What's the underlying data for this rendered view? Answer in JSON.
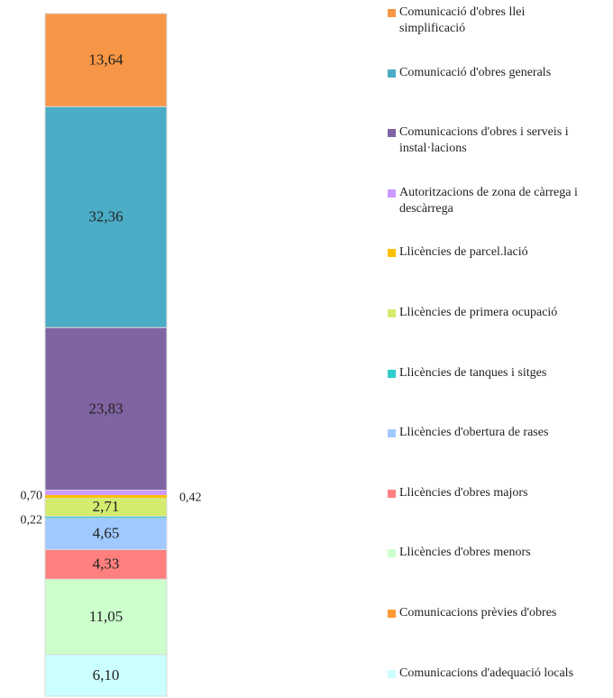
{
  "chart_data": {
    "type": "stacked-bar",
    "series": [
      {
        "name": "Comunicacions d'adequació locals",
        "color": "#ccffff",
        "values": [
          6.1
        ],
        "value_labels": [
          "6,10"
        ]
      },
      {
        "name": "Comunicacions prèvies d'obres",
        "color": "#ff9933",
        "values": [
          0
        ],
        "value_labels": [
          null
        ]
      },
      {
        "name": "Llicències d'obres menors",
        "color": "#ccffcc",
        "values": [
          11.05
        ],
        "value_labels": [
          "11,05"
        ]
      },
      {
        "name": "Llicències d'obres majors",
        "color": "#ff7f7f",
        "values": [
          4.33
        ],
        "value_labels": [
          "4,33"
        ]
      },
      {
        "name": "Llicències d'obertura de rases",
        "color": "#9fc9ff",
        "values": [
          4.65
        ],
        "value_labels": [
          "4,65"
        ]
      },
      {
        "name": "Llicències de tanques i sitges",
        "color": "#33cccc",
        "values": [
          0.22
        ],
        "value_labels": [
          "0,22"
        ]
      },
      {
        "name": "Llicències de primera ocupació",
        "color": "#d4ec6e",
        "values": [
          2.71
        ],
        "value_labels": [
          "2,71"
        ]
      },
      {
        "name": "Llicències de parcel.lació",
        "color": "#ffc000",
        "values": [
          0.42
        ],
        "value_labels": [
          "0,42"
        ]
      },
      {
        "name": "Autoritzacions de zona de càrrega i descàrrega",
        "color": "#cc99ff",
        "values": [
          0.7
        ],
        "value_labels": [
          "0,70"
        ]
      },
      {
        "name": "Comunicacions d'obres i serveis i instal·lacions",
        "color": "#8064a2",
        "values": [
          23.83
        ],
        "value_labels": [
          "23,83"
        ]
      },
      {
        "name": "Comunicació d'obres generals",
        "color": "#4bacc6",
        "values": [
          32.36
        ],
        "value_labels": [
          "32,36"
        ]
      },
      {
        "name": "Comunicació d'obres llei simplificació",
        "color": "#f79646",
        "values": [
          13.64
        ],
        "value_labels": [
          "13,64"
        ]
      }
    ]
  }
}
